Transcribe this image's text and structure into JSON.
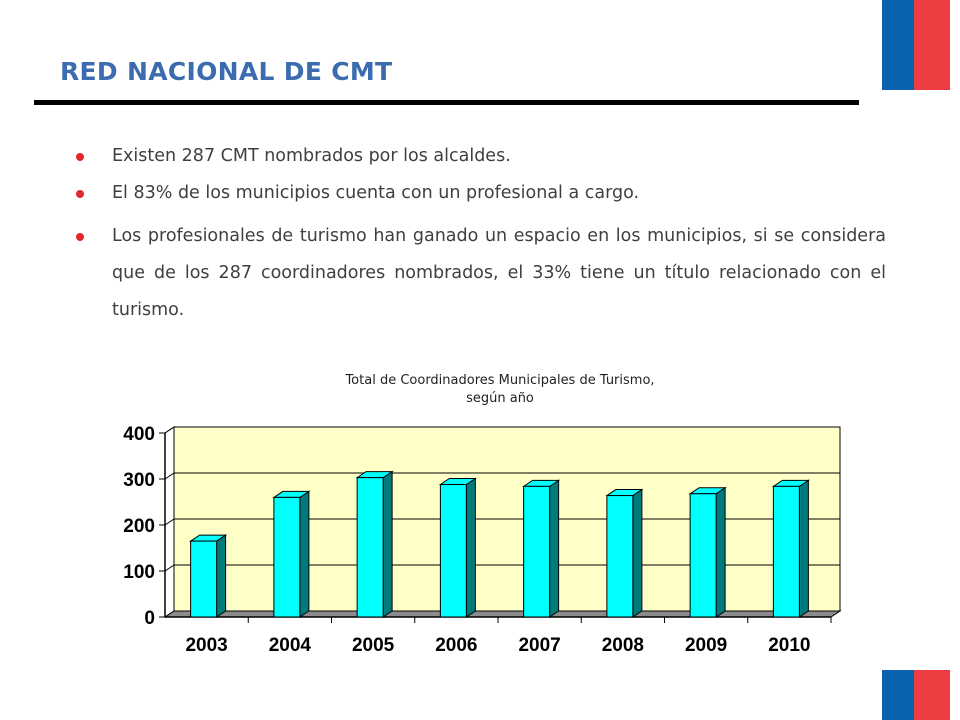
{
  "header": {
    "title": "RED NACIONAL DE CMT"
  },
  "bullets": [
    "Existen 287 CMT nombrados por los alcaldes.",
    "El 83% de los municipios cuenta con un profesional a cargo.",
    "Los profesionales de turismo han ganado un espacio en los municipios, si se considera que de los 287 coordinadores nombrados, el 33% tiene un título relacionado con el turismo."
  ],
  "colors": {
    "title": "#3b6cb0",
    "bullet_dot": "#e0282e",
    "flag_blue": "#0b62b0",
    "flag_red": "#ee3c43",
    "plot_background": "#ffffc8",
    "bar_front": "#00ffff",
    "bar_side": "#007b7b"
  },
  "chart_data": {
    "type": "bar",
    "title": "Total de Coordinadores Municipales de Turismo, según año",
    "categories": [
      "2003",
      "2004",
      "2005",
      "2006",
      "2007",
      "2008",
      "2009",
      "2010"
    ],
    "values": [
      165,
      260,
      303,
      288,
      284,
      264,
      268,
      284
    ],
    "yticks": [
      "0",
      "100",
      "200",
      "300",
      "400"
    ],
    "ylim": [
      0,
      400
    ],
    "grid": true,
    "style": "3d"
  }
}
